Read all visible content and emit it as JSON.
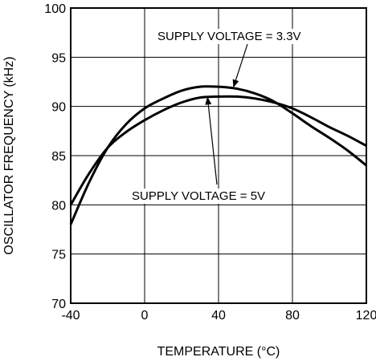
{
  "chart_data": {
    "type": "line",
    "xlabel": "TEMPERATURE (°C)",
    "ylabel": "OSCILLATOR FREQUENCY (kHz)",
    "xlim": [
      -40,
      120
    ],
    "ylim": [
      70,
      100
    ],
    "x_ticks": [
      -40,
      0,
      40,
      80,
      120
    ],
    "y_ticks": [
      70,
      75,
      80,
      85,
      90,
      95,
      100
    ],
    "x_tick_labels": [
      "-40",
      "0",
      "40",
      "80",
      "120"
    ],
    "y_tick_labels": [
      "70",
      "75",
      "80",
      "85",
      "90",
      "95",
      "100"
    ],
    "grid": true,
    "series": [
      {
        "x": [
          -40,
          -30,
          -20,
          -10,
          0,
          10,
          20,
          30,
          40,
          50,
          60,
          70,
          80,
          90,
          100,
          110,
          120
        ],
        "y": [
          78.0,
          82.3,
          85.8,
          88.2,
          89.8,
          90.8,
          91.6,
          92.0,
          92.0,
          91.8,
          91.3,
          90.5,
          89.3,
          88.0,
          86.8,
          85.5,
          84.0
        ]
      },
      {
        "x": [
          -40,
          -30,
          -20,
          -10,
          0,
          10,
          20,
          30,
          40,
          50,
          60,
          70,
          80,
          90,
          100,
          110,
          120
        ],
        "y": [
          80.0,
          83.2,
          85.8,
          87.4,
          88.6,
          89.6,
          90.4,
          90.9,
          91.0,
          91.0,
          90.8,
          90.4,
          89.8,
          88.9,
          87.9,
          87.0,
          86.0
        ]
      }
    ],
    "annotations": [
      {
        "text": "SUPPLY VOLTAGE = 3.3V",
        "arrow_to": [
          48,
          91.9
        ]
      },
      {
        "text": "SUPPLY VOLTAGE  = 5V",
        "arrow_to": [
          34,
          91.0
        ]
      }
    ]
  },
  "colors": {
    "line": "#000000",
    "grid": "#000000",
    "background": "#ffffff"
  }
}
